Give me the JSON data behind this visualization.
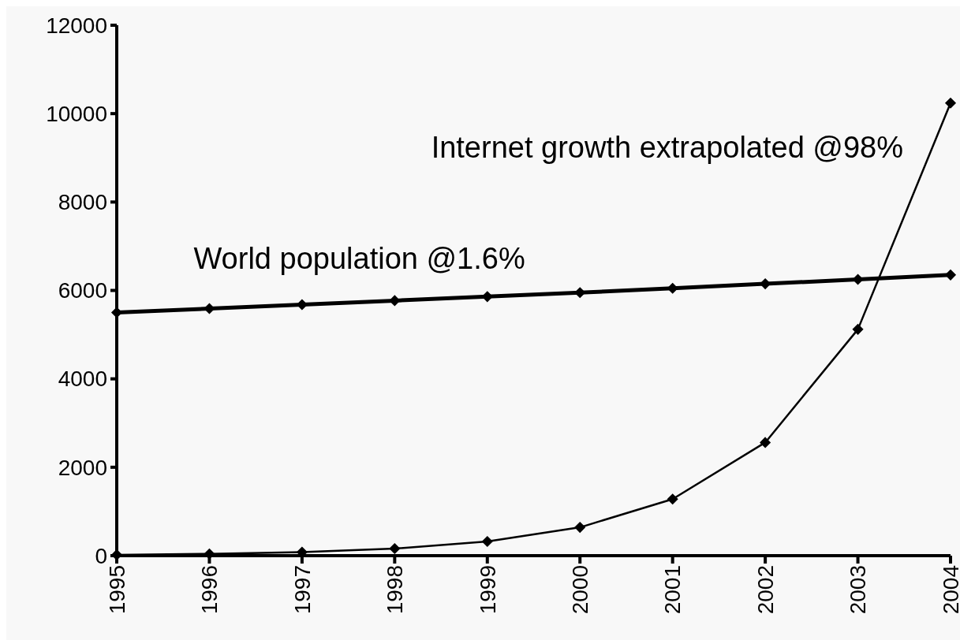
{
  "chart_data": {
    "type": "line",
    "x": [
      1995,
      1996,
      1997,
      1998,
      1999,
      2000,
      2001,
      2002,
      2003,
      2004
    ],
    "xlim": [
      1995,
      2004
    ],
    "xticks": [
      1995,
      1996,
      1997,
      1998,
      1999,
      2000,
      2001,
      2002,
      2003,
      2004
    ],
    "ylim": [
      0,
      12000
    ],
    "yticks": [
      0,
      2000,
      4000,
      6000,
      8000,
      10000,
      12000
    ],
    "series": [
      {
        "name": "World population @1.6%",
        "color": "#000000",
        "values": [
          5500,
          5590,
          5680,
          5770,
          5860,
          5950,
          6050,
          6150,
          6250,
          6350
        ]
      },
      {
        "name": "Internet growth extrapolated @98%",
        "color": "#000000",
        "values": [
          20,
          40,
          80,
          160,
          320,
          640,
          1280,
          2560,
          5120,
          10240
        ]
      }
    ],
    "marker": "diamond",
    "line_style": "solid",
    "grid": false
  }
}
